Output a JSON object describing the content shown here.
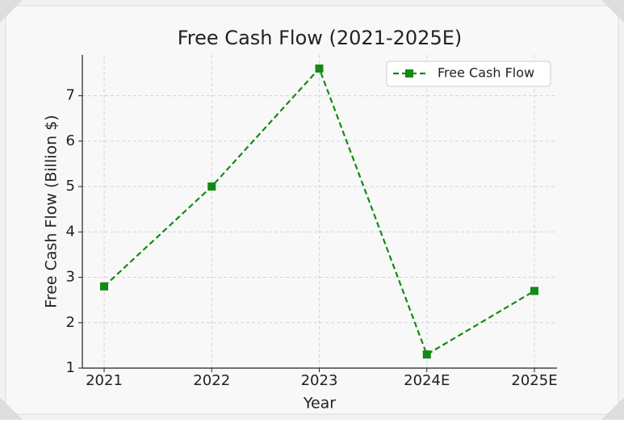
{
  "chart_data": {
    "type": "line",
    "title": "Free Cash Flow (2021-2025E)",
    "x_label": "Year",
    "y_label": "Free Cash Flow (Billion $)",
    "categories": [
      "2021",
      "2022",
      "2023",
      "2024E",
      "2025E"
    ],
    "series": [
      {
        "name": "Free Cash Flow",
        "color": "#138a13",
        "values": [
          2.8,
          5.0,
          7.6,
          1.3,
          2.7
        ]
      }
    ],
    "ylim": [
      1,
      7.9
    ],
    "yticks": [
      1,
      2,
      3,
      4,
      5,
      6,
      7
    ],
    "grid": true,
    "legend": "upper right"
  }
}
